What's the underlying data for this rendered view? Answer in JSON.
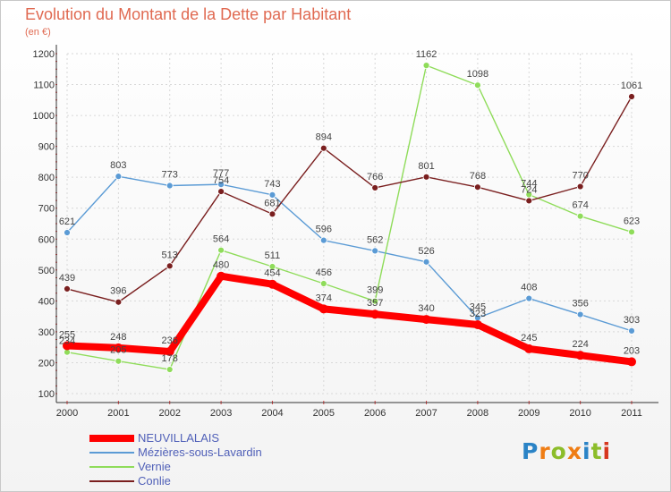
{
  "title": "Evolution du Montant de la Dette par Habitant",
  "subtitle": "(en €)",
  "logo": {
    "text": "Proxiti",
    "colors": [
      "#2a83c6",
      "#ef7d14",
      "#8cbd2a",
      "#ef7d14",
      "#2a83c6",
      "#8cbd2a",
      "#d6371f"
    ]
  },
  "chart_data": {
    "type": "line",
    "title": "Evolution du Montant de la Dette par Habitant",
    "subtitle": "(en €)",
    "xlabel": "",
    "ylabel": "",
    "categories": [
      "2000",
      "2001",
      "2002",
      "2003",
      "2004",
      "2005",
      "2006",
      "2007",
      "2008",
      "2009",
      "2010",
      "2011"
    ],
    "yticks": [
      100,
      200,
      300,
      400,
      500,
      600,
      700,
      800,
      900,
      1000,
      1100,
      1200
    ],
    "ylim": [
      100,
      1200
    ],
    "grid": true,
    "legend_position": "bottom-left",
    "series": [
      {
        "name": "NEUVILLALAIS",
        "color": "#ff0000",
        "values": [
          255,
          248,
          236,
          480,
          454,
          374,
          357,
          340,
          323,
          245,
          224,
          203
        ],
        "labels": [
          "255",
          "248",
          "236",
          "480",
          "454",
          "374",
          "357",
          "340",
          "323",
          "245",
          "224",
          "203"
        ]
      },
      {
        "name": "Mézières-sous-Lavardin",
        "color": "#5b9bd5",
        "values": [
          621,
          803,
          773,
          777,
          743,
          596,
          562,
          526,
          345,
          408,
          356,
          303
        ],
        "labels": [
          "621",
          "803",
          "773",
          "777",
          "743",
          "596",
          "562",
          "526",
          "345",
          "408",
          "356",
          "303"
        ]
      },
      {
        "name": "Vernie",
        "color": "#8fdc5a",
        "values": [
          234,
          205,
          178,
          564,
          511,
          456,
          399,
          1162,
          1098,
          744,
          674,
          623
        ],
        "labels": [
          "234",
          "205",
          "178",
          "564",
          "511",
          "456",
          "399",
          "1162",
          "1098",
          "744",
          "674",
          "623"
        ]
      },
      {
        "name": "Conlie",
        "color": "#7a1f1f",
        "values": [
          439,
          396,
          513,
          754,
          681,
          894,
          766,
          801,
          768,
          724,
          770,
          1061
        ],
        "labels": [
          "439",
          "396",
          "513",
          "754",
          "681",
          "894",
          "766",
          "801",
          "768",
          "724",
          "770",
          "1061"
        ]
      }
    ]
  }
}
